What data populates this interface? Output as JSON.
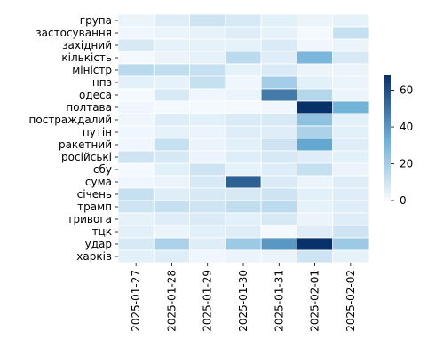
{
  "chart_data": {
    "type": "heatmap",
    "title": "",
    "xlabel": "",
    "ylabel": "",
    "x_categories": [
      "2025-01-27",
      "2025-01-28",
      "2025-01-29",
      "2025-01-30",
      "2025-01-31",
      "2025-02-01",
      "2025-02-02"
    ],
    "y_categories": [
      "група",
      "застосування",
      "західний",
      "кількість",
      "міністр",
      "нпз",
      "одеса",
      "полтава",
      "постраждалий",
      "путін",
      "ракетний",
      "російські",
      "сбу",
      "сума",
      "січень",
      "трамп",
      "тривога",
      "тцк",
      "удар",
      "харків"
    ],
    "values": [
      [
        3,
        6,
        10,
        8,
        5,
        3,
        4
      ],
      [
        2,
        3,
        4,
        6,
        4,
        1,
        12
      ],
      [
        8,
        4,
        4,
        4,
        7,
        2,
        3
      ],
      [
        1,
        3,
        4,
        14,
        6,
        30,
        8
      ],
      [
        15,
        13,
        12,
        4,
        7,
        3,
        3
      ],
      [
        5,
        4,
        12,
        2,
        20,
        5,
        3
      ],
      [
        1,
        8,
        2,
        3,
        48,
        16,
        3
      ],
      [
        2,
        1,
        1,
        1,
        2,
        68,
        32
      ],
      [
        2,
        6,
        5,
        7,
        8,
        25,
        5
      ],
      [
        2,
        4,
        3,
        6,
        6,
        18,
        5
      ],
      [
        2,
        12,
        3,
        5,
        10,
        36,
        6
      ],
      [
        10,
        8,
        3,
        6,
        8,
        6,
        5
      ],
      [
        1,
        5,
        10,
        4,
        6,
        12,
        3
      ],
      [
        2,
        3,
        8,
        55,
        7,
        3,
        6
      ],
      [
        12,
        6,
        8,
        8,
        10,
        5,
        6
      ],
      [
        10,
        12,
        10,
        13,
        14,
        4,
        6
      ],
      [
        4,
        6,
        7,
        5,
        8,
        3,
        6
      ],
      [
        5,
        3,
        5,
        6,
        1,
        6,
        10
      ],
      [
        8,
        18,
        6,
        22,
        40,
        68,
        22
      ],
      [
        5,
        6,
        2,
        3,
        3,
        10,
        4
      ]
    ],
    "colorbar": {
      "min": 0,
      "max": 68,
      "ticks": [
        0,
        20,
        40,
        60
      ]
    },
    "colormap": {
      "low": "#f7fbff",
      "mid": "#6aaed6",
      "high": "#08306b"
    }
  }
}
